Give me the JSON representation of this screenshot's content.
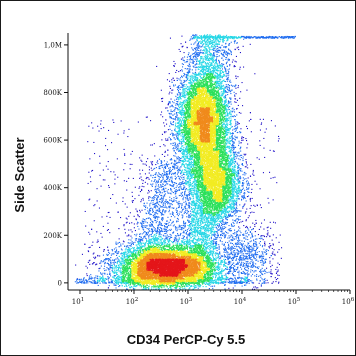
{
  "chart_data": {
    "type": "scatter",
    "subtype": "flow-cytometry-density-dot-plot",
    "title": "",
    "xlabel": "CD34 PerCP-Cy 5.5",
    "ylabel": "Side Scatter",
    "x_scale": "log",
    "y_scale": "linear",
    "xlim": [
      6,
      1000000
    ],
    "ylim": [
      -30000,
      1050000
    ],
    "x_ticks": [
      {
        "value": 10,
        "label": "10",
        "exp": "1"
      },
      {
        "value": 100,
        "label": "10",
        "exp": "2"
      },
      {
        "value": 1000,
        "label": "10",
        "exp": "3"
      },
      {
        "value": 10000,
        "label": "10",
        "exp": "4"
      },
      {
        "value": 100000,
        "label": "10",
        "exp": "5"
      },
      {
        "value": 1000000,
        "label": "10",
        "exp": "6"
      }
    ],
    "y_ticks": [
      {
        "value": 0,
        "label": "0"
      },
      {
        "value": 200000,
        "label": "200K"
      },
      {
        "value": 400000,
        "label": "400K"
      },
      {
        "value": 600000,
        "label": "600K"
      },
      {
        "value": 800000,
        "label": "800K"
      },
      {
        "value": 1000000,
        "label": "1,0M"
      }
    ],
    "grid": false,
    "legend": "none",
    "colormap": [
      "#1f10c8",
      "#1e6cf0",
      "#27d7e6",
      "#2be05a",
      "#f2ec22",
      "#f08a1c",
      "#e4161a"
    ],
    "populations": [
      {
        "x_center": 400,
        "y_center": 70000,
        "x_spread_decades": 0.45,
        "y_spread": 45000,
        "density": "very high"
      },
      {
        "x_center": 1800,
        "y_center": 680000,
        "x_spread_decades": 0.25,
        "y_spread": 110000,
        "density": "high"
      },
      {
        "x_center": 3500,
        "y_center": 420000,
        "x_spread_decades": 0.22,
        "y_spread": 90000,
        "density": "medium"
      },
      {
        "x_center": 12000,
        "y_center": 120000,
        "x_spread_decades": 0.25,
        "y_spread": 60000,
        "density": "low"
      }
    ]
  }
}
